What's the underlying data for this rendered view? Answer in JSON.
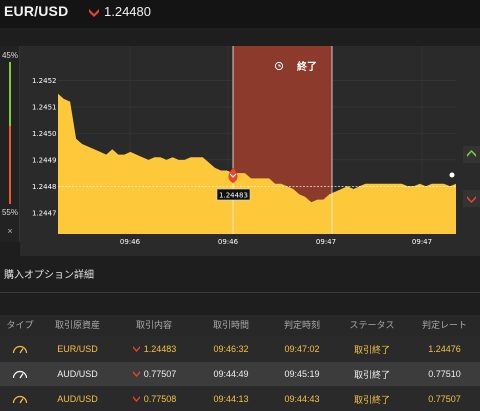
{
  "header": {
    "pair": "EUR/USD",
    "price": "1.24480",
    "price_direction_icon": "red-down-chevron-icon",
    "accent_down": "#e8452a",
    "accent_up": "#7ccf3a"
  },
  "gauge": {
    "top_label": "45%",
    "bottom_label": "55%",
    "close_label": "×"
  },
  "chart": {
    "end_label": "終了",
    "history_icon": "clock-history-icon",
    "marker_price": "1.24483",
    "fill_color": "#fdc83a",
    "area_bg": "#2a2a2a",
    "zone_color": "#8b3a2b"
  },
  "chart_data": {
    "type": "area",
    "yticks": [
      "1.2452",
      "1.2451",
      "1.2450",
      "1.2449",
      "1.2448",
      "1.2447"
    ],
    "ylim": [
      1.24462,
      1.24533
    ],
    "xticks": [
      "09:46",
      "09:46",
      "09:47",
      "09:47"
    ],
    "values": [
      1.24515,
      1.24513,
      1.24512,
      1.24498,
      1.24496,
      1.24495,
      1.24494,
      1.24493,
      1.24492,
      1.24494,
      1.24492,
      1.24492,
      1.24493,
      1.24492,
      1.24491,
      1.2449,
      1.24491,
      1.24491,
      1.2449,
      1.24491,
      1.2449,
      1.2449,
      1.24491,
      1.24491,
      1.24491,
      1.24489,
      1.24487,
      1.24486,
      1.24486,
      1.24485,
      1.24485,
      1.24485,
      1.24483,
      1.24483,
      1.24483,
      1.24483,
      1.24481,
      1.24481,
      1.2448,
      1.24479,
      1.24477,
      1.24476,
      1.24474,
      1.24475,
      1.24475,
      1.24477,
      1.24478,
      1.24479,
      1.2448,
      1.24479,
      1.2448,
      1.24481,
      1.24481,
      1.24481,
      1.24481,
      1.24481,
      1.24481,
      1.24481,
      1.2448,
      1.2448,
      1.24481,
      1.2448,
      1.24481,
      1.24481,
      1.24481,
      1.2448,
      1.24481
    ],
    "entry_price": 1.24483,
    "horizontal_line": 1.2448
  },
  "section": {
    "title": "購入オプション詳細"
  },
  "table": {
    "headers": [
      "タイプ",
      "取引原資産",
      "取引内容",
      "取引時間",
      "判定時刻",
      "ステータス",
      "判定レート"
    ],
    "rows": [
      {
        "asset": "EUR/USD",
        "content": "1.24483",
        "time": "09:46:32",
        "judge": "09:47:02",
        "status": "取引終了",
        "rate": "1.24476",
        "highlight": true
      },
      {
        "asset": "AUD/USD",
        "content": "0.77507",
        "time": "09:44:49",
        "judge": "09:45:19",
        "status": "取引終了",
        "rate": "0.77510",
        "highlight": false
      },
      {
        "asset": "AUD/USD",
        "content": "0.77508",
        "time": "09:44:13",
        "judge": "09:44:43",
        "status": "取引終了",
        "rate": "0.77507",
        "highlight": true
      }
    ]
  }
}
